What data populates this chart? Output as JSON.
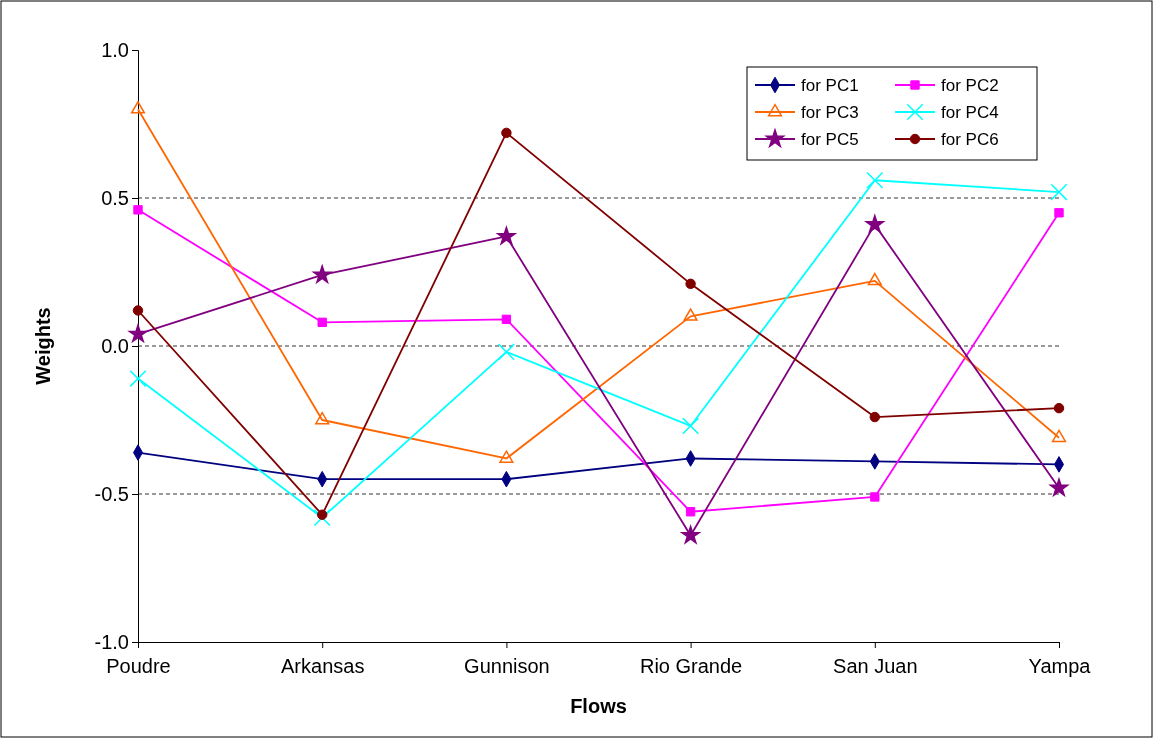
{
  "chart_data": {
    "type": "line",
    "xlabel": "Flows",
    "ylabel": "Weights",
    "categories": [
      "Poudre",
      "Arkansas",
      "Gunnison",
      "Rio Grande",
      "San Juan",
      "Yampa"
    ],
    "ylim": [
      -1,
      1
    ],
    "yticks": [
      {
        "value": -1,
        "label": "-1.0"
      },
      {
        "value": -0.5,
        "label": "-0.5"
      },
      {
        "value": 0,
        "label": "0.0"
      },
      {
        "value": 0.5,
        "label": "0.5"
      },
      {
        "value": 1,
        "label": "1.0"
      }
    ],
    "grid": "y",
    "legend": "top right",
    "line_style": "solid",
    "series": [
      {
        "name": "for PC1",
        "color": "#000080",
        "marker": "diamond",
        "values": [
          -0.36,
          -0.45,
          -0.45,
          -0.38,
          -0.39,
          -0.4
        ]
      },
      {
        "name": "for PC2",
        "color": "#ff00ff",
        "marker": "square",
        "values": [
          0.46,
          0.08,
          0.09,
          -0.56,
          -0.51,
          0.45
        ]
      },
      {
        "name": "for PC3",
        "color": "#ff6600",
        "marker": "triangle",
        "values": [
          0.8,
          -0.25,
          -0.38,
          0.1,
          0.22,
          -0.31
        ]
      },
      {
        "name": "for PC4",
        "color": "#00ffff",
        "marker": "cross",
        "values": [
          -0.11,
          -0.58,
          -0.02,
          -0.27,
          0.56,
          0.52
        ]
      },
      {
        "name": "for PC5",
        "color": "#800080",
        "marker": "star",
        "values": [
          0.04,
          0.24,
          0.37,
          -0.64,
          0.41,
          -0.48
        ]
      },
      {
        "name": "for PC6",
        "color": "#800000",
        "marker": "circle",
        "values": [
          0.12,
          -0.57,
          0.72,
          0.21,
          -0.24,
          -0.21
        ]
      }
    ]
  }
}
